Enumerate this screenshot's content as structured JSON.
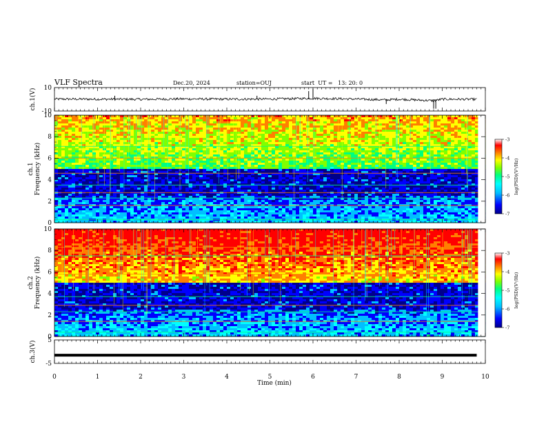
{
  "header": {
    "title": "VLF Spectra",
    "date": "Dec.20, 2024",
    "station": "station=OUJ",
    "start": "start  UT =   13: 20: 0"
  },
  "colors": {
    "spectrum_scale": [
      "#00008b",
      "#0000ff",
      "#00bfff",
      "#00ffff",
      "#00ff7f",
      "#7fff00",
      "#ffff00",
      "#ff7f00",
      "#ff0000",
      "#ffffff"
    ]
  },
  "chart_data": [
    {
      "type": "line",
      "panel": "ch1-waveform",
      "ylabel": "ch.1(V)",
      "yticks": [
        "10",
        "-10"
      ],
      "ylim": [
        -10,
        10
      ],
      "x": [
        0,
        1,
        2,
        3,
        4,
        5,
        6,
        7,
        7.7,
        8,
        8.8,
        9,
        9.8
      ],
      "values": [
        0.2,
        0.1,
        0.0,
        0.3,
        0.1,
        0.2,
        0.8,
        0.2,
        -0.5,
        0.1,
        -1.2,
        0.1,
        0.0
      ]
    },
    {
      "type": "heatmap",
      "panel": "ch1-spectrogram",
      "ylabel": "ch.1\nFrequency  (kHz)",
      "yticks": [
        "0",
        "2",
        "4",
        "6",
        "8",
        "10"
      ],
      "ylim": [
        0,
        10
      ],
      "xlim": [
        0,
        10
      ],
      "colorbar": {
        "label": "log(PSD)(V²/Hz)",
        "ticks": [
          "-3",
          "-4",
          "-5",
          "-6",
          "-7"
        ],
        "range": [
          -7,
          -3
        ]
      },
      "bands_khz": [
        6,
        7.1,
        4.6,
        3.5,
        2.8,
        2.3,
        1.6,
        0.3
      ]
    },
    {
      "type": "heatmap",
      "panel": "ch2-spectrogram",
      "ylabel": "ch.2\nFrequency  (kHz)",
      "yticks": [
        "0",
        "2",
        "4",
        "6",
        "8",
        "10"
      ],
      "ylim": [
        0,
        10
      ],
      "xlim": [
        0,
        10
      ],
      "colorbar": {
        "label": "log(PSD)(V²/Hz)",
        "ticks": [
          "-3",
          "-4",
          "-5",
          "-6",
          "-7"
        ],
        "range": [
          -7,
          -3
        ]
      },
      "bands_khz": [
        8.3,
        7.5,
        5.8,
        3.7,
        2.9,
        2.3,
        1.4,
        0.4
      ]
    },
    {
      "type": "line",
      "panel": "ch3-waveform",
      "ylabel": "ch.3(V)",
      "yticks": [
        "5",
        "-5"
      ],
      "ylim": [
        -5,
        5
      ],
      "x": [
        0,
        9.8
      ],
      "values": [
        -1.5,
        -1.5
      ]
    }
  ],
  "xaxis": {
    "label": "Time  (min)",
    "ticks": [
      "0",
      "1",
      "2",
      "3",
      "4",
      "5",
      "6",
      "7",
      "8",
      "9",
      "10"
    ],
    "range": [
      0,
      10
    ]
  }
}
